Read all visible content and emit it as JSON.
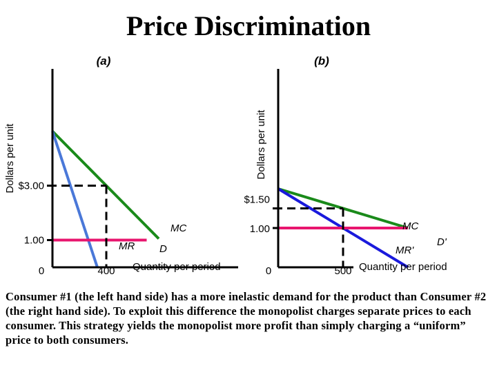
{
  "title": "Price Discrimination",
  "caption": "Consumer #1 (the left hand side) has a more inelastic demand for the product than Consumer #2 (the right hand side).  To exploit this difference the monopolist charges separate prices to each consumer.  This strategy yields the monopolist more profit than simply charging a “uniform” price to both consumers.",
  "colors": {
    "demand": "#1a8a1a",
    "marginal_revenue_a": "#4a78d8",
    "marginal_revenue_b": "#1a1adc",
    "marginal_cost": "#e8156e",
    "axis": "#000000"
  },
  "chart_data": [
    {
      "type": "line",
      "panel_label": "(a)",
      "ylabel": "Dollars per unit",
      "xlabel": "Quantity per period",
      "origin_label": "0",
      "xlim": [
        0,
        700
      ],
      "ylim": [
        0,
        5.5
      ],
      "x_ticks": [
        {
          "value": 400,
          "label": "400"
        }
      ],
      "y_ticks": [
        {
          "value": 3.0,
          "label": "$3.00"
        },
        {
          "value": 1.0,
          "label": "1.00"
        }
      ],
      "series": [
        {
          "name": "D",
          "role": "demand",
          "x": [
            0,
            800
          ],
          "y": [
            5.0,
            1.0
          ]
        },
        {
          "name": "MR",
          "role": "marginal_revenue",
          "x": [
            0,
            400
          ],
          "y": [
            5.0,
            -1.0
          ]
        },
        {
          "name": "MC",
          "role": "marginal_cost",
          "x": [
            0,
            700
          ],
          "y": [
            1.0,
            1.0
          ]
        }
      ],
      "guides": {
        "x": 400,
        "y": 3.0,
        "style": "dashed"
      }
    },
    {
      "type": "line",
      "panel_label": "(b)",
      "ylabel": "Dollars per unit",
      "xlabel": "Quantity per period",
      "origin_label": "0",
      "xlim": [
        0,
        1000
      ],
      "ylim": [
        0,
        5.5
      ],
      "x_ticks": [
        {
          "value": 500,
          "label": "500"
        }
      ],
      "y_ticks": [
        {
          "value": 1.5,
          "label": "$1.50"
        },
        {
          "value": 1.0,
          "label": "1.00"
        }
      ],
      "series": [
        {
          "name": "D'",
          "role": "demand",
          "x": [
            0,
            1000
          ],
          "y": [
            2.0,
            1.0
          ]
        },
        {
          "name": "MR'",
          "role": "marginal_revenue",
          "x": [
            0,
            1000
          ],
          "y": [
            2.0,
            0.0
          ]
        },
        {
          "name": "MC",
          "role": "marginal_cost",
          "x": [
            0,
            1000
          ],
          "y": [
            1.0,
            1.0
          ]
        }
      ],
      "guides": {
        "x": 500,
        "y": 1.5,
        "style": "dashed"
      }
    }
  ]
}
